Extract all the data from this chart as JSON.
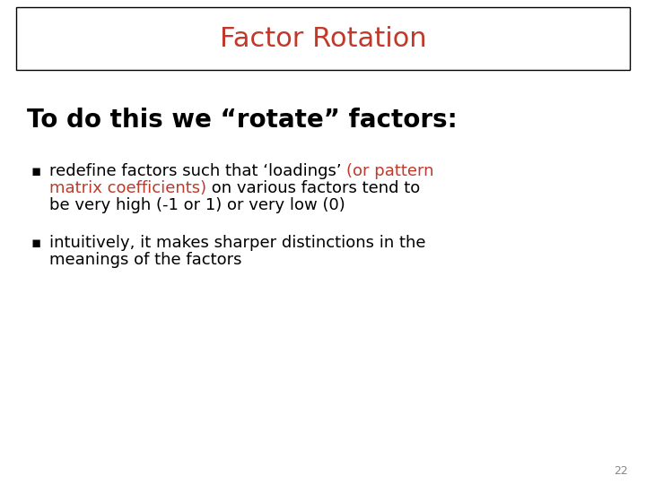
{
  "title": "Factor Rotation",
  "title_color": "#C0392B",
  "title_fontsize": 22,
  "title_box_color": "#000000",
  "background_color": "#FFFFFF",
  "heading": "To do this we “rotate” factors:",
  "heading_color": "#000000",
  "heading_fontsize": 20,
  "bullet_fontsize": 13,
  "bullet_color": "#000000",
  "bullet_red_color": "#C0392B",
  "page_number": "22",
  "page_num_color": "#888888",
  "page_num_fontsize": 9
}
